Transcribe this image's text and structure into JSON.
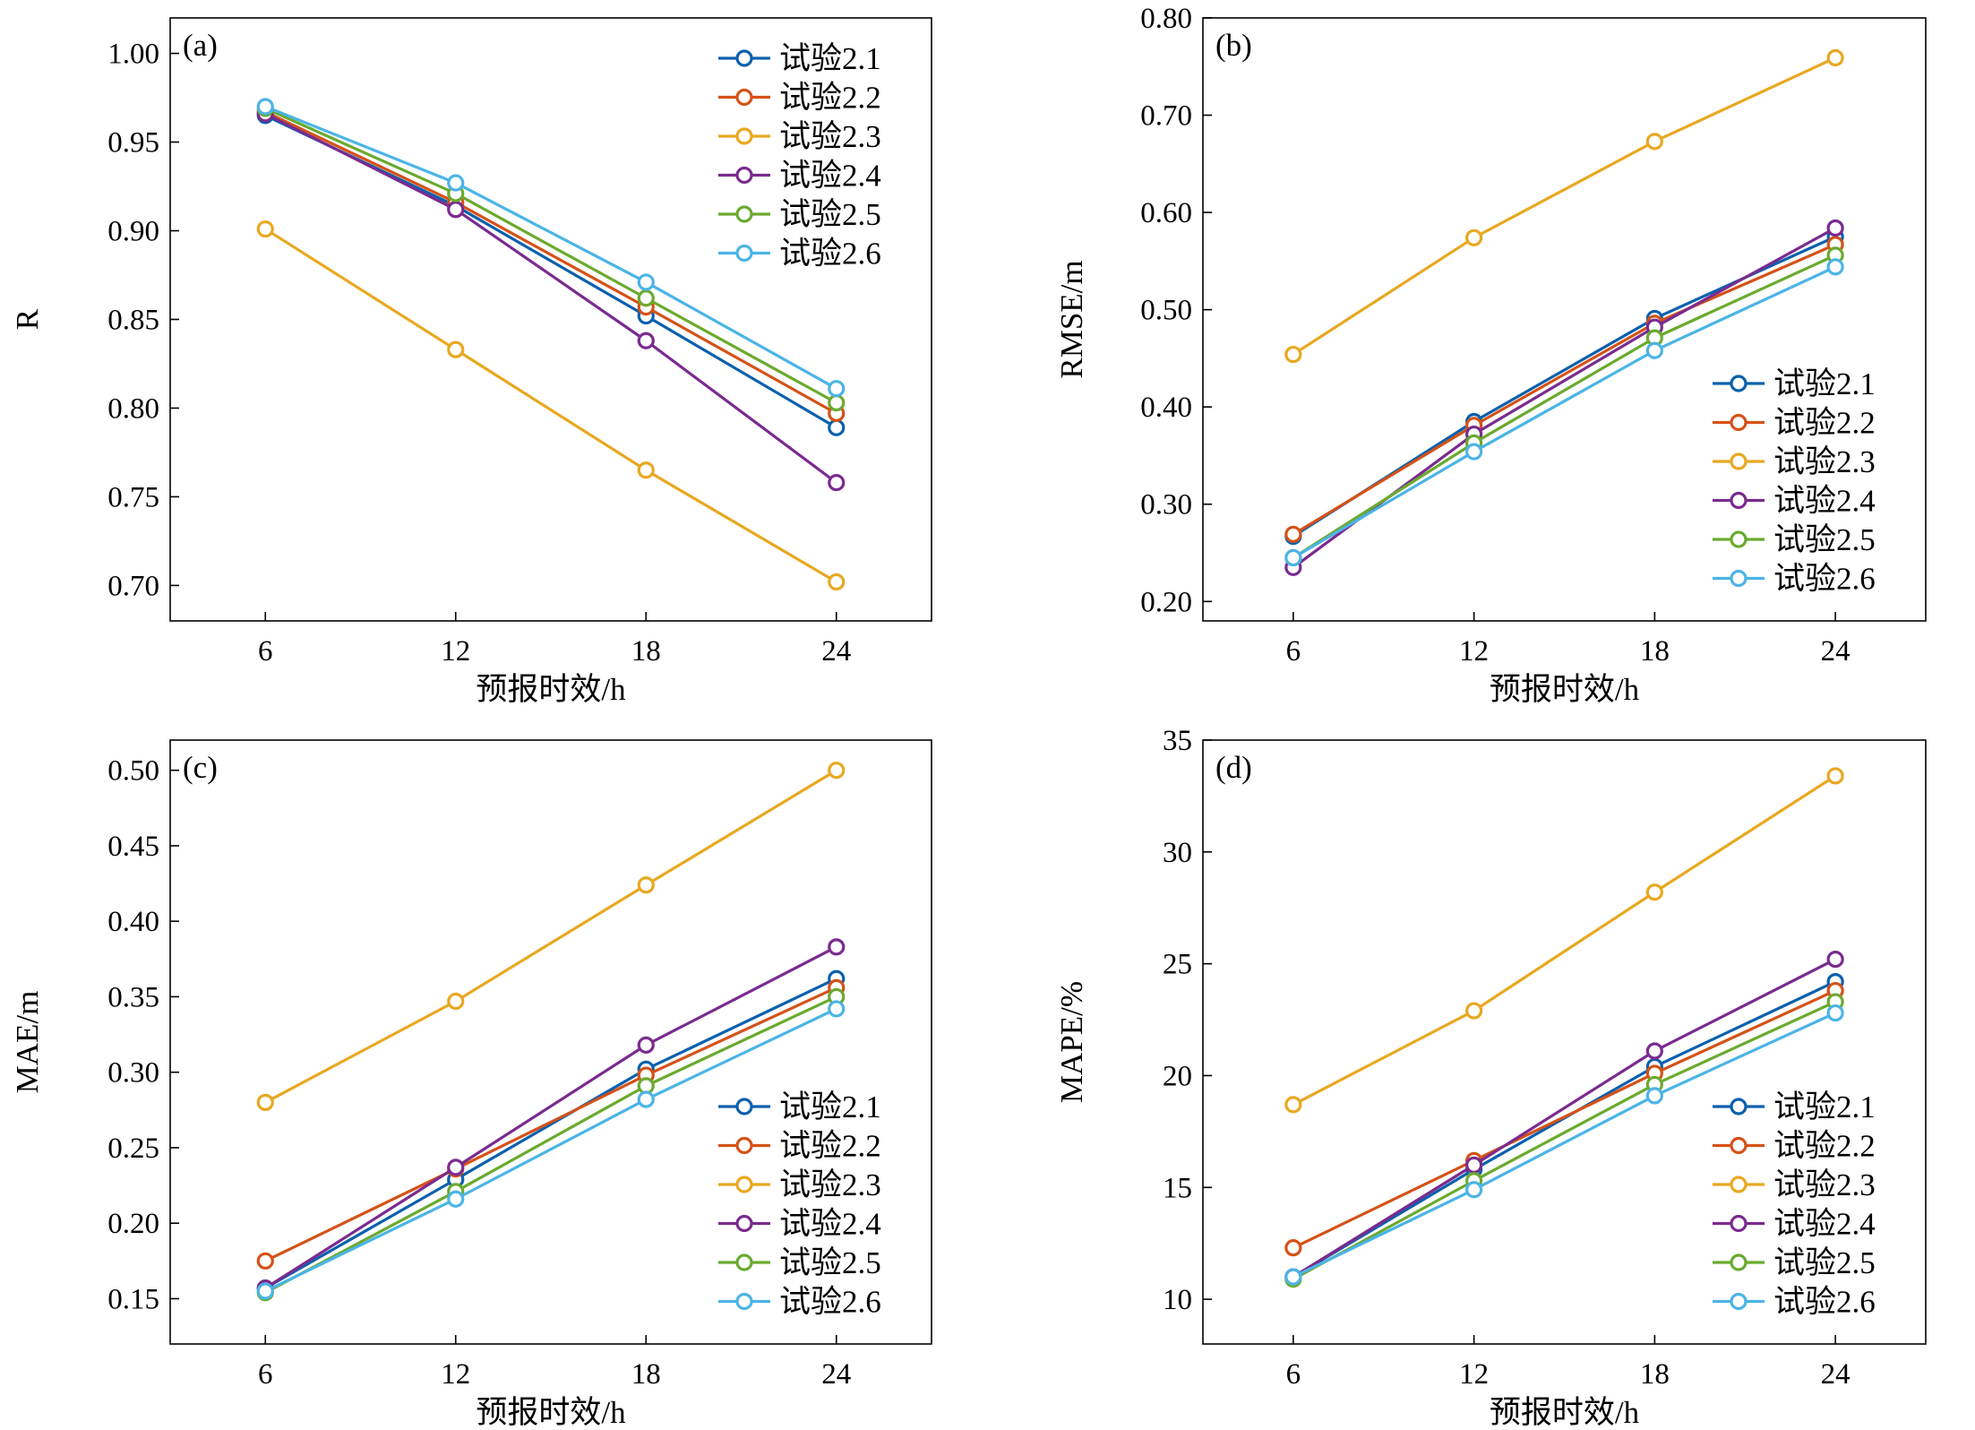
{
  "legend_labels": [
    "试验2.1",
    "试验2.2",
    "试验2.3",
    "试验2.4",
    "试验2.5",
    "试验2.6"
  ],
  "series_colors": [
    "#0b60ad",
    "#d45218",
    "#e8a820",
    "#7a2b8f",
    "#6aaa2f",
    "#4bb4e6"
  ],
  "chart_data": [
    {
      "type": "line",
      "panel_label": "(a)",
      "title": "",
      "xlabel": "预报时效/h",
      "ylabel": "R",
      "x": [
        6,
        12,
        18,
        24
      ],
      "xticks": [
        "6",
        "12",
        "18",
        "24"
      ],
      "xlim": [
        3,
        27
      ],
      "ylim": [
        0.68,
        1.02
      ],
      "yticks": [
        "0.70",
        "0.75",
        "0.80",
        "0.85",
        "0.90",
        "0.95",
        "1.00"
      ],
      "ytick_values": [
        0.7,
        0.75,
        0.8,
        0.85,
        0.9,
        0.95,
        1.0
      ],
      "legend_position": "top-right",
      "grid": false,
      "series": [
        {
          "name": "试验2.1",
          "values": [
            0.965,
            0.914,
            0.852,
            0.789
          ]
        },
        {
          "name": "试验2.2",
          "values": [
            0.967,
            0.916,
            0.857,
            0.797
          ]
        },
        {
          "name": "试验2.3",
          "values": [
            0.901,
            0.833,
            0.765,
            0.702
          ]
        },
        {
          "name": "试验2.4",
          "values": [
            0.966,
            0.912,
            0.838,
            0.758
          ]
        },
        {
          "name": "试验2.5",
          "values": [
            0.969,
            0.921,
            0.862,
            0.803
          ]
        },
        {
          "name": "试验2.6",
          "values": [
            0.97,
            0.927,
            0.871,
            0.811
          ]
        }
      ]
    },
    {
      "type": "line",
      "panel_label": "(b)",
      "title": "",
      "xlabel": "预报时效/h",
      "ylabel": "RMSE/m",
      "x": [
        6,
        12,
        18,
        24
      ],
      "xticks": [
        "6",
        "12",
        "18",
        "24"
      ],
      "xlim": [
        3,
        27
      ],
      "ylim": [
        0.18,
        0.8
      ],
      "yticks": [
        "0.20",
        "0.30",
        "0.40",
        "0.50",
        "0.60",
        "0.70",
        "0.80"
      ],
      "ytick_values": [
        0.2,
        0.3,
        0.4,
        0.5,
        0.6,
        0.7,
        0.8
      ],
      "legend_position": "bottom-right",
      "grid": false,
      "series": [
        {
          "name": "试验2.1",
          "values": [
            0.267,
            0.385,
            0.491,
            0.575
          ]
        },
        {
          "name": "试验2.2",
          "values": [
            0.269,
            0.381,
            0.486,
            0.567
          ]
        },
        {
          "name": "试验2.3",
          "values": [
            0.454,
            0.574,
            0.673,
            0.759
          ]
        },
        {
          "name": "试验2.4",
          "values": [
            0.235,
            0.372,
            0.482,
            0.584
          ]
        },
        {
          "name": "试验2.5",
          "values": [
            0.245,
            0.363,
            0.471,
            0.556
          ]
        },
        {
          "name": "试验2.6",
          "values": [
            0.245,
            0.354,
            0.458,
            0.544
          ]
        }
      ]
    },
    {
      "type": "line",
      "panel_label": "(c)",
      "title": "",
      "xlabel": "预报时效/h",
      "ylabel": "MAE/m",
      "x": [
        6,
        12,
        18,
        24
      ],
      "xticks": [
        "6",
        "12",
        "18",
        "24"
      ],
      "xlim": [
        3,
        27
      ],
      "ylim": [
        0.12,
        0.52
      ],
      "yticks": [
        "0.15",
        "0.20",
        "0.25",
        "0.30",
        "0.35",
        "0.40",
        "0.45",
        "0.50"
      ],
      "ytick_values": [
        0.15,
        0.2,
        0.25,
        0.3,
        0.35,
        0.4,
        0.45,
        0.5
      ],
      "legend_position": "bottom-right",
      "grid": false,
      "series": [
        {
          "name": "试验2.1",
          "values": [
            0.157,
            0.229,
            0.302,
            0.362
          ]
        },
        {
          "name": "试验2.2",
          "values": [
            0.175,
            0.236,
            0.298,
            0.356
          ]
        },
        {
          "name": "试验2.3",
          "values": [
            0.28,
            0.347,
            0.424,
            0.5
          ]
        },
        {
          "name": "试验2.4",
          "values": [
            0.157,
            0.237,
            0.318,
            0.383
          ]
        },
        {
          "name": "试验2.5",
          "values": [
            0.154,
            0.221,
            0.291,
            0.35
          ]
        },
        {
          "name": "试验2.6",
          "values": [
            0.155,
            0.216,
            0.282,
            0.342
          ]
        }
      ]
    },
    {
      "type": "line",
      "panel_label": "(d)",
      "title": "",
      "xlabel": "预报时效/h",
      "ylabel": "MAPE/%",
      "x": [
        6,
        12,
        18,
        24
      ],
      "xticks": [
        "6",
        "12",
        "18",
        "24"
      ],
      "xlim": [
        3,
        27
      ],
      "ylim": [
        8,
        35
      ],
      "yticks": [
        "10",
        "15",
        "20",
        "25",
        "30",
        "35"
      ],
      "ytick_values": [
        10,
        15,
        20,
        25,
        30,
        35
      ],
      "legend_position": "bottom-right",
      "grid": false,
      "series": [
        {
          "name": "试验2.1",
          "values": [
            11.0,
            15.8,
            20.4,
            24.2
          ]
        },
        {
          "name": "试验2.2",
          "values": [
            12.3,
            16.2,
            20.1,
            23.8
          ]
        },
        {
          "name": "试验2.3",
          "values": [
            18.7,
            22.9,
            28.2,
            33.4
          ]
        },
        {
          "name": "试验2.4",
          "values": [
            11.0,
            16.0,
            21.1,
            25.2
          ]
        },
        {
          "name": "试验2.5",
          "values": [
            10.9,
            15.3,
            19.6,
            23.3
          ]
        },
        {
          "name": "试验2.6",
          "values": [
            11.0,
            14.9,
            19.1,
            22.8
          ]
        }
      ]
    }
  ]
}
